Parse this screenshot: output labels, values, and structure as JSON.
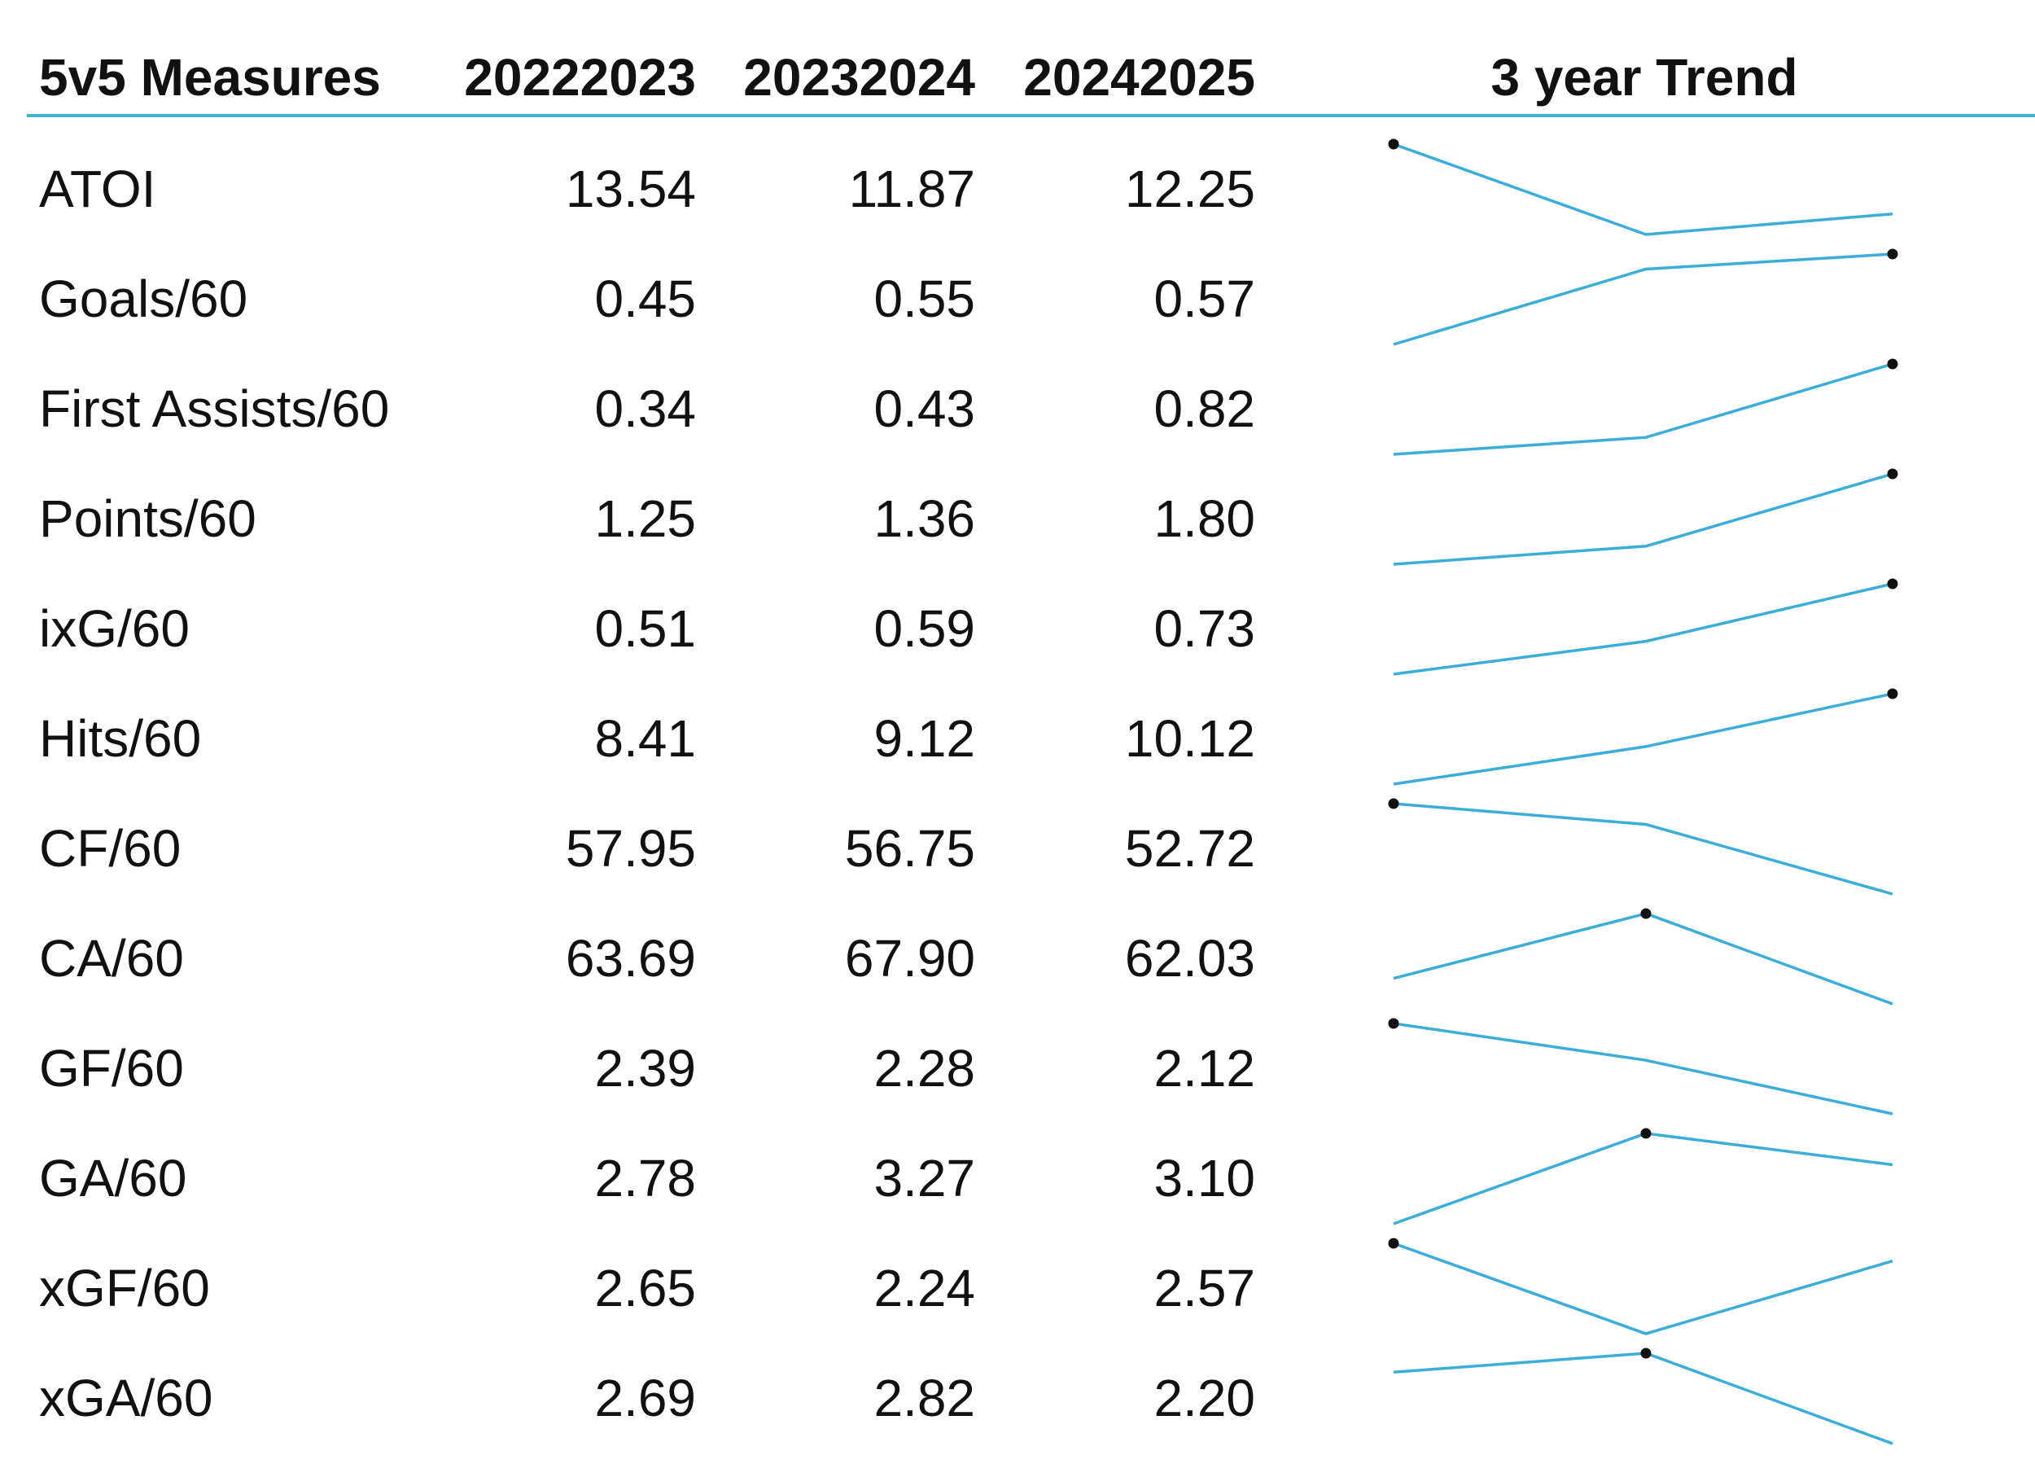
{
  "table": {
    "header": {
      "measure": "5v5 Measures",
      "years": [
        "20222023",
        "20232024",
        "20242025"
      ],
      "trend": "3 year Trend"
    },
    "rows": [
      {
        "label": "ATOI",
        "values": [
          "13.54",
          "11.87",
          "12.25"
        ]
      },
      {
        "label": "Goals/60",
        "values": [
          "0.45",
          "0.55",
          "0.57"
        ]
      },
      {
        "label": "First Assists/60",
        "values": [
          "0.34",
          "0.43",
          "0.82"
        ]
      },
      {
        "label": "Points/60",
        "values": [
          "1.25",
          "1.36",
          "1.80"
        ]
      },
      {
        "label": "ixG/60",
        "values": [
          "0.51",
          "0.59",
          "0.73"
        ]
      },
      {
        "label": "Hits/60",
        "values": [
          "8.41",
          "9.12",
          "10.12"
        ]
      },
      {
        "label": "CF/60",
        "values": [
          "57.95",
          "56.75",
          "52.72"
        ]
      },
      {
        "label": "CA/60",
        "values": [
          "63.69",
          "67.90",
          "62.03"
        ]
      },
      {
        "label": "GF/60",
        "values": [
          "2.39",
          "2.28",
          "2.12"
        ]
      },
      {
        "label": "GA/60",
        "values": [
          "2.78",
          "3.27",
          "3.10"
        ]
      },
      {
        "label": "xGF/60",
        "values": [
          "2.65",
          "2.24",
          "2.57"
        ]
      },
      {
        "label": "xGA/60",
        "values": [
          "2.69",
          "2.82",
          "2.20"
        ]
      }
    ]
  },
  "chart_data": {
    "type": "table",
    "columns": [
      "5v5 Measures",
      "20222023",
      "20232024",
      "20242025",
      "3 year Trend"
    ],
    "sparkline_type": "line",
    "sparkline_marker": "max",
    "series": [
      {
        "name": "ATOI",
        "values": [
          13.54,
          11.87,
          12.25
        ]
      },
      {
        "name": "Goals/60",
        "values": [
          0.45,
          0.55,
          0.57
        ]
      },
      {
        "name": "First Assists/60",
        "values": [
          0.34,
          0.43,
          0.82
        ]
      },
      {
        "name": "Points/60",
        "values": [
          1.25,
          1.36,
          1.8
        ]
      },
      {
        "name": "ixG/60",
        "values": [
          0.51,
          0.59,
          0.73
        ]
      },
      {
        "name": "Hits/60",
        "values": [
          8.41,
          9.12,
          10.12
        ]
      },
      {
        "name": "CF/60",
        "values": [
          57.95,
          56.75,
          52.72
        ]
      },
      {
        "name": "CA/60",
        "values": [
          63.69,
          67.9,
          62.03
        ]
      },
      {
        "name": "GF/60",
        "values": [
          2.39,
          2.28,
          2.12
        ]
      },
      {
        "name": "GA/60",
        "values": [
          2.78,
          3.27,
          3.1
        ]
      },
      {
        "name": "xGF/60",
        "values": [
          2.65,
          2.24,
          2.57
        ]
      },
      {
        "name": "xGA/60",
        "values": [
          2.69,
          2.82,
          2.2
        ]
      }
    ]
  },
  "colors": {
    "sparkline": "#3aaed8",
    "marker": "#111111",
    "header_rule": "#3fb2dc"
  }
}
